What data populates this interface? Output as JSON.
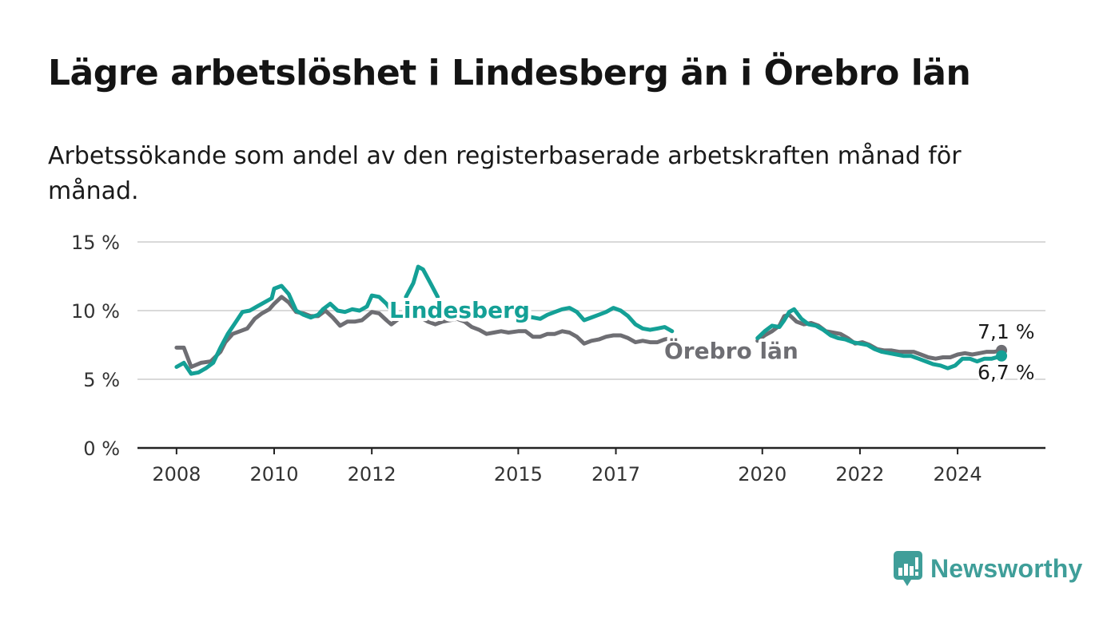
{
  "title": "Lägre arbetslöshet i Lindesberg än i Örebro län",
  "subtitle": "Arbetssökande som andel av den registerbaserade arbetskraften månad för månad.",
  "logo_text": "Newsworthy",
  "colors": {
    "lindesberg": "#14a096",
    "orebro": "#6e6e73",
    "grid": "#d9d9d9",
    "axis": "#222222",
    "logo": "#3f9e99"
  },
  "chart_data": {
    "type": "line",
    "title": "Lägre arbetslöshet i Lindesberg än i Örebro län",
    "subtitle": "Arbetssökande som andel av den registerbaserade arbetskraften månad för månad.",
    "xlabel": "",
    "ylabel": "",
    "ylim": [
      0,
      15
    ],
    "xlim": [
      2007.2,
      2025.8
    ],
    "y_ticks": [
      0,
      5,
      10,
      15
    ],
    "y_tick_labels": [
      "0 %",
      "5 %",
      "10 %",
      "15 %"
    ],
    "x_ticks": [
      2008,
      2010,
      2012,
      2015,
      2017,
      2020,
      2022,
      2024
    ],
    "x_tick_labels": [
      "2008",
      "2010",
      "2012",
      "2015",
      "2017",
      "2020",
      "2022",
      "2024"
    ],
    "grid": true,
    "series": [
      {
        "name": "Örebro län",
        "color": "#6e6e73",
        "segments": [
          [
            [
              2008.0,
              7.3
            ],
            [
              2008.15,
              7.3
            ],
            [
              2008.3,
              5.9
            ],
            [
              2008.5,
              6.2
            ],
            [
              2008.7,
              6.3
            ],
            [
              2008.9,
              7.0
            ],
            [
              2009.0,
              7.7
            ],
            [
              2009.15,
              8.3
            ],
            [
              2009.3,
              8.5
            ],
            [
              2009.45,
              8.7
            ],
            [
              2009.6,
              9.4
            ],
            [
              2009.75,
              9.8
            ],
            [
              2009.9,
              10.1
            ],
            [
              2010.0,
              10.5
            ],
            [
              2010.15,
              11.0
            ],
            [
              2010.3,
              10.6
            ],
            [
              2010.45,
              9.9
            ],
            [
              2010.6,
              9.8
            ],
            [
              2010.75,
              9.6
            ],
            [
              2010.9,
              9.6
            ],
            [
              2011.05,
              10.0
            ],
            [
              2011.2,
              9.5
            ],
            [
              2011.35,
              8.9
            ],
            [
              2011.5,
              9.2
            ],
            [
              2011.65,
              9.2
            ],
            [
              2011.8,
              9.3
            ],
            [
              2012.0,
              9.9
            ],
            [
              2012.15,
              9.8
            ],
            [
              2012.3,
              9.3
            ],
            [
              2012.4,
              9.0
            ],
            [
              2012.55,
              9.4
            ],
            [
              2012.7,
              9.5
            ],
            [
              2012.85,
              9.6
            ],
            [
              2013.0,
              9.5
            ],
            [
              2013.15,
              9.2
            ],
            [
              2013.3,
              9.0
            ],
            [
              2013.45,
              9.2
            ],
            [
              2013.6,
              9.3
            ],
            [
              2013.75,
              9.4
            ],
            [
              2013.9,
              9.2
            ],
            [
              2014.05,
              8.8
            ],
            [
              2014.2,
              8.6
            ],
            [
              2014.35,
              8.3
            ],
            [
              2014.5,
              8.4
            ],
            [
              2014.65,
              8.5
            ],
            [
              2014.8,
              8.4
            ],
            [
              2015.0,
              8.5
            ],
            [
              2015.15,
              8.5
            ],
            [
              2015.3,
              8.1
            ],
            [
              2015.45,
              8.1
            ],
            [
              2015.6,
              8.3
            ],
            [
              2015.75,
              8.3
            ],
            [
              2015.9,
              8.5
            ],
            [
              2016.05,
              8.4
            ],
            [
              2016.2,
              8.1
            ],
            [
              2016.35,
              7.6
            ],
            [
              2016.5,
              7.8
            ],
            [
              2016.65,
              7.9
            ],
            [
              2016.8,
              8.1
            ],
            [
              2016.95,
              8.2
            ],
            [
              2017.1,
              8.2
            ],
            [
              2017.25,
              8.0
            ],
            [
              2017.4,
              7.7
            ],
            [
              2017.55,
              7.8
            ],
            [
              2017.7,
              7.7
            ],
            [
              2017.85,
              7.7
            ],
            [
              2018.0,
              7.9
            ],
            [
              2018.15,
              8.0
            ]
          ],
          [
            [
              2019.9,
              7.8
            ],
            [
              2020.05,
              8.2
            ],
            [
              2020.2,
              8.5
            ],
            [
              2020.35,
              8.9
            ],
            [
              2020.45,
              9.6
            ],
            [
              2020.55,
              9.7
            ],
            [
              2020.7,
              9.2
            ],
            [
              2020.85,
              9.0
            ],
            [
              2021.0,
              9.1
            ],
            [
              2021.15,
              8.9
            ],
            [
              2021.3,
              8.5
            ],
            [
              2021.45,
              8.4
            ],
            [
              2021.6,
              8.3
            ],
            [
              2021.75,
              8.0
            ],
            [
              2021.9,
              7.6
            ],
            [
              2022.05,
              7.7
            ],
            [
              2022.2,
              7.5
            ],
            [
              2022.35,
              7.2
            ],
            [
              2022.5,
              7.1
            ],
            [
              2022.65,
              7.1
            ],
            [
              2022.8,
              7.0
            ],
            [
              2022.95,
              7.0
            ],
            [
              2023.1,
              7.0
            ],
            [
              2023.25,
              6.8
            ],
            [
              2023.4,
              6.6
            ],
            [
              2023.55,
              6.5
            ],
            [
              2023.7,
              6.6
            ],
            [
              2023.85,
              6.6
            ],
            [
              2024.0,
              6.8
            ],
            [
              2024.15,
              6.9
            ],
            [
              2024.3,
              6.8
            ],
            [
              2024.45,
              6.9
            ],
            [
              2024.6,
              7.0
            ],
            [
              2024.75,
              7.0
            ],
            [
              2024.9,
              7.1
            ]
          ]
        ],
        "end_label": "7,1 %"
      },
      {
        "name": "Lindesberg",
        "color": "#14a096",
        "segments": [
          [
            [
              2008.0,
              5.9
            ],
            [
              2008.15,
              6.2
            ],
            [
              2008.3,
              5.4
            ],
            [
              2008.45,
              5.5
            ],
            [
              2008.6,
              5.8
            ],
            [
              2008.75,
              6.2
            ],
            [
              2008.9,
              7.3
            ],
            [
              2009.05,
              8.3
            ],
            [
              2009.2,
              9.1
            ],
            [
              2009.35,
              9.9
            ],
            [
              2009.5,
              10.0
            ],
            [
              2009.65,
              10.3
            ],
            [
              2009.8,
              10.6
            ],
            [
              2009.95,
              10.9
            ],
            [
              2010.0,
              11.6
            ],
            [
              2010.15,
              11.8
            ],
            [
              2010.3,
              11.2
            ],
            [
              2010.45,
              10.0
            ],
            [
              2010.6,
              9.7
            ],
            [
              2010.75,
              9.5
            ],
            [
              2010.9,
              9.7
            ],
            [
              2011.0,
              10.1
            ],
            [
              2011.15,
              10.5
            ],
            [
              2011.3,
              10.0
            ],
            [
              2011.45,
              9.9
            ],
            [
              2011.6,
              10.1
            ],
            [
              2011.75,
              10.0
            ],
            [
              2011.9,
              10.3
            ],
            [
              2012.0,
              11.1
            ],
            [
              2012.15,
              11.0
            ],
            [
              2012.3,
              10.5
            ],
            [
              2012.4,
              10.0
            ]
          ],
          [
            [
              2012.7,
              11.0
            ],
            [
              2012.85,
              12.0
            ],
            [
              2012.95,
              13.2
            ],
            [
              2013.05,
              13.0
            ],
            [
              2013.2,
              12.0
            ],
            [
              2013.35,
              11.0
            ]
          ],
          [
            [
              2015.0,
              10.2
            ],
            [
              2015.15,
              9.6
            ],
            [
              2015.3,
              9.5
            ],
            [
              2015.45,
              9.4
            ],
            [
              2015.6,
              9.7
            ],
            [
              2015.75,
              9.9
            ],
            [
              2015.9,
              10.1
            ],
            [
              2016.05,
              10.2
            ],
            [
              2016.2,
              9.9
            ],
            [
              2016.35,
              9.3
            ],
            [
              2016.5,
              9.5
            ],
            [
              2016.65,
              9.7
            ],
            [
              2016.8,
              9.9
            ],
            [
              2016.95,
              10.2
            ],
            [
              2017.1,
              10.0
            ],
            [
              2017.25,
              9.6
            ],
            [
              2017.4,
              9.0
            ],
            [
              2017.55,
              8.7
            ],
            [
              2017.7,
              8.6
            ],
            [
              2017.85,
              8.7
            ],
            [
              2018.0,
              8.8
            ],
            [
              2018.15,
              8.5
            ]
          ],
          [
            [
              2019.9,
              8.0
            ],
            [
              2020.05,
              8.5
            ],
            [
              2020.2,
              8.9
            ],
            [
              2020.35,
              8.8
            ],
            [
              2020.45,
              9.3
            ],
            [
              2020.55,
              9.9
            ],
            [
              2020.65,
              10.1
            ],
            [
              2020.8,
              9.4
            ],
            [
              2020.95,
              9.0
            ],
            [
              2021.1,
              8.9
            ],
            [
              2021.25,
              8.6
            ],
            [
              2021.4,
              8.2
            ],
            [
              2021.55,
              8.0
            ],
            [
              2021.7,
              7.9
            ],
            [
              2021.85,
              7.7
            ],
            [
              2022.0,
              7.6
            ],
            [
              2022.15,
              7.5
            ],
            [
              2022.3,
              7.2
            ],
            [
              2022.45,
              7.0
            ],
            [
              2022.6,
              6.9
            ],
            [
              2022.75,
              6.8
            ],
            [
              2022.9,
              6.7
            ],
            [
              2023.05,
              6.7
            ],
            [
              2023.2,
              6.5
            ],
            [
              2023.35,
              6.3
            ],
            [
              2023.5,
              6.1
            ],
            [
              2023.65,
              6.0
            ],
            [
              2023.8,
              5.8
            ],
            [
              2023.95,
              6.0
            ],
            [
              2024.1,
              6.5
            ],
            [
              2024.25,
              6.5
            ],
            [
              2024.4,
              6.3
            ],
            [
              2024.55,
              6.5
            ],
            [
              2024.7,
              6.5
            ],
            [
              2024.9,
              6.7
            ]
          ]
        ],
        "end_label": "6,7 %"
      }
    ]
  }
}
